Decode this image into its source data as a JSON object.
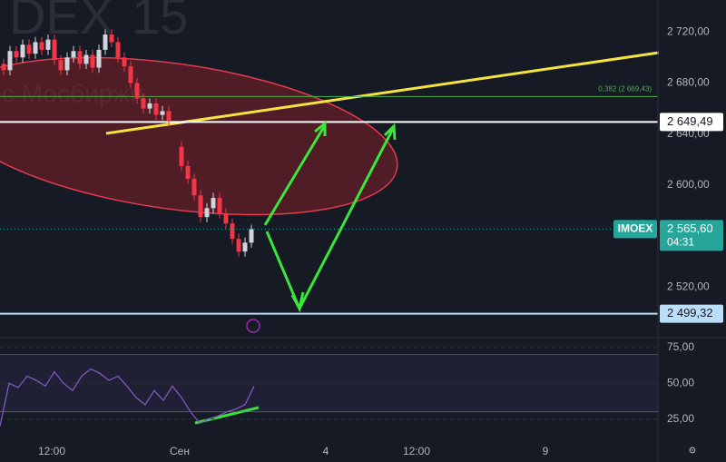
{
  "chart_data": {
    "type": "candlestick",
    "watermark": [
      "DEX",
      "15",
      "с Мосбиржи"
    ],
    "open": [
      2695,
      2690,
      2705,
      2700,
      2710,
      2703,
      2712,
      2706,
      2714,
      2698,
      2690,
      2700,
      2705,
      2695,
      2702,
      2692,
      2706,
      2718,
      2712,
      2700,
      2693,
      2680,
      2668,
      2660,
      2664,
      2655,
      2658,
      2630,
      2615,
      2605,
      2592,
      2575,
      2582,
      2590,
      2578,
      2570,
      2558,
      2548,
      2555
    ],
    "high": [
      2699,
      2709,
      2709,
      2714,
      2714,
      2716,
      2716,
      2718,
      2718,
      2702,
      2704,
      2709,
      2709,
      2706,
      2706,
      2710,
      2722,
      2722,
      2716,
      2704,
      2697,
      2684,
      2672,
      2668,
      2668,
      2662,
      2662,
      2634,
      2619,
      2609,
      2596,
      2586,
      2594,
      2594,
      2582,
      2574,
      2562,
      2559,
      2569
    ],
    "low": [
      2686,
      2686,
      2696,
      2696,
      2699,
      2699,
      2702,
      2702,
      2694,
      2686,
      2686,
      2696,
      2691,
      2691,
      2688,
      2688,
      2702,
      2708,
      2696,
      2689,
      2676,
      2664,
      2656,
      2656,
      2651,
      2651,
      2646,
      2611,
      2601,
      2588,
      2571,
      2571,
      2578,
      2574,
      2566,
      2554,
      2544,
      2544,
      2551
    ],
    "close": [
      2690,
      2705,
      2700,
      2710,
      2703,
      2712,
      2706,
      2714,
      2698,
      2690,
      2700,
      2705,
      2695,
      2702,
      2692,
      2706,
      2718,
      2712,
      2700,
      2693,
      2680,
      2668,
      2660,
      2664,
      2655,
      2658,
      2650,
      2615,
      2605,
      2592,
      2575,
      2582,
      2590,
      2578,
      2570,
      2558,
      2548,
      2555,
      2565.6
    ],
    "up_color": "#d1d4dc",
    "down_color": "#f23645",
    "ylim": [
      2482,
      2745
    ],
    "yticks": [
      {
        "value": 2720,
        "label": "2 720,00"
      },
      {
        "value": 2680,
        "label": "2 680,00"
      },
      {
        "value": 2640,
        "label": "2 640,00"
      },
      {
        "value": 2600,
        "label": "2 600,00"
      },
      {
        "value": 2520,
        "label": "2 520,00"
      }
    ],
    "levels": [
      {
        "value": 2649.49,
        "label": "2 649,49",
        "color": "#ffffff"
      },
      {
        "value": 2499.32,
        "label": "2 499,32",
        "color": "#bbdefb"
      }
    ],
    "fib": {
      "value": 2669.43,
      "label": "0,382 (2 669,43)",
      "color": "#4caf50"
    },
    "last": {
      "name": "IMOEX",
      "value": 2565.6,
      "label": "2 565,60",
      "countdown": "04:31",
      "color": "#26a69a"
    },
    "rsi": {
      "values": [
        20,
        50,
        47,
        55,
        52,
        48,
        58,
        50,
        45,
        55,
        60,
        57,
        52,
        55,
        48,
        40,
        35,
        45,
        38,
        48,
        40,
        30,
        22,
        25,
        27,
        30,
        32,
        35,
        48
      ],
      "color": "#7e57c2",
      "ylim": [
        7,
        80
      ],
      "yticks": [
        {
          "value": 75,
          "label": "75,00"
        },
        {
          "value": 50,
          "label": "50,00"
        },
        {
          "value": 25,
          "label": "25,00"
        }
      ],
      "band": [
        30,
        70
      ]
    },
    "x_labels": [
      "12:00",
      "Сен",
      "4",
      "12:00",
      "9"
    ]
  }
}
